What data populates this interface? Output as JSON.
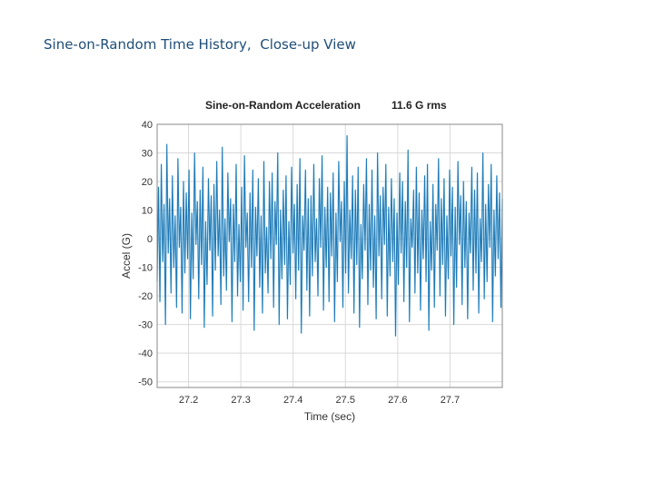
{
  "slide": {
    "title": "Sine-on-Random Time History,  Close-up View"
  },
  "chart_data": {
    "type": "line",
    "title": "Sine-on-Random Acceleration",
    "title_suffix": "11.6 G rms",
    "xlabel": "Time (sec)",
    "ylabel": "Accel (G)",
    "xlim": [
      27.14,
      27.8
    ],
    "ylim": [
      -52,
      40
    ],
    "x_ticks": [
      27.2,
      27.3,
      27.4,
      27.5,
      27.6,
      27.7
    ],
    "x_tick_labels": [
      "27.2",
      "27.3",
      "27.4",
      "27.5",
      "27.6",
      "27.7"
    ],
    "y_ticks": [
      40,
      30,
      20,
      10,
      0,
      -10,
      -20,
      -30,
      -40,
      -50
    ],
    "y_tick_labels": [
      "40",
      "30",
      "20",
      "10",
      "0",
      "-10",
      "-20",
      "-30",
      "-40",
      "-50"
    ],
    "grid": true,
    "colors": {
      "line": "#1f77b4",
      "envelope": "#6fc7ee",
      "grid": "#d9d9d9",
      "axes": "#888888"
    },
    "series": [
      {
        "x_start": 27.14,
        "x_end": 27.8,
        "values": [
          -15,
          18,
          -22,
          26,
          -8,
          12,
          -30,
          33,
          -5,
          14,
          -19,
          22,
          -10,
          8,
          -24,
          28,
          -3,
          11,
          -26,
          20,
          -12,
          16,
          -7,
          24,
          -28,
          9,
          -14,
          30,
          -2,
          13,
          -21,
          17,
          -9,
          25,
          -31,
          6,
          -16,
          21,
          -4,
          15,
          -27,
          19,
          -11,
          27,
          -6,
          10,
          -23,
          32,
          -13,
          7,
          -18,
          23,
          -1,
          14,
          -29,
          12,
          -8,
          26,
          -20,
          5,
          -15,
          18,
          -25,
          29,
          -3,
          9,
          -22,
          16,
          -10,
          24,
          -32,
          11,
          -6,
          21,
          -17,
          8,
          -26,
          27,
          -12,
          4,
          -19,
          20,
          -7,
          23,
          -24,
          13,
          -2,
          30,
          -30,
          10,
          -14,
          17,
          -9,
          22,
          -28,
          6,
          -16,
          25,
          -5,
          12,
          -21,
          19,
          -11,
          28,
          -33,
          8,
          -4,
          24,
          -18,
          14,
          -27,
          15,
          -13,
          26,
          -8,
          7,
          -20,
          21,
          -3,
          29,
          -25,
          11,
          -10,
          18,
          -22,
          16,
          -6,
          23,
          -29,
          9,
          -15,
          27,
          -1,
          13,
          -24,
          20,
          -12,
          36,
          -19,
          10,
          -7,
          22,
          -26,
          17,
          -9,
          25,
          -31,
          5,
          -14,
          19,
          -4,
          28,
          -23,
          12,
          -11,
          24,
          -17,
          8,
          -28,
          30,
          -6,
          15,
          -21,
          18,
          -2,
          26,
          -27,
          11,
          -13,
          21,
          -8,
          14,
          -34,
          9,
          -16,
          23,
          -5,
          20,
          -22,
          13,
          -10,
          31,
          -29,
          7,
          -3,
          17,
          -19,
          25,
          -12,
          16,
          -25,
          10,
          -7,
          22,
          -15,
          26,
          -32,
          6,
          -11,
          19,
          -24,
          12,
          -4,
          28,
          -20,
          14,
          -9,
          21,
          -27,
          8,
          -14,
          24,
          -6,
          18,
          -30,
          11,
          -17,
          27,
          -2,
          15,
          -23,
          20,
          -10,
          13,
          -28,
          9,
          -5,
          25,
          -18,
          17,
          -12,
          23,
          -26,
          7,
          -8,
          30,
          -21,
          12,
          -15,
          19,
          -3,
          26,
          -29,
          10,
          -13,
          22,
          -7,
          16,
          -24,
          14
        ]
      }
    ]
  }
}
